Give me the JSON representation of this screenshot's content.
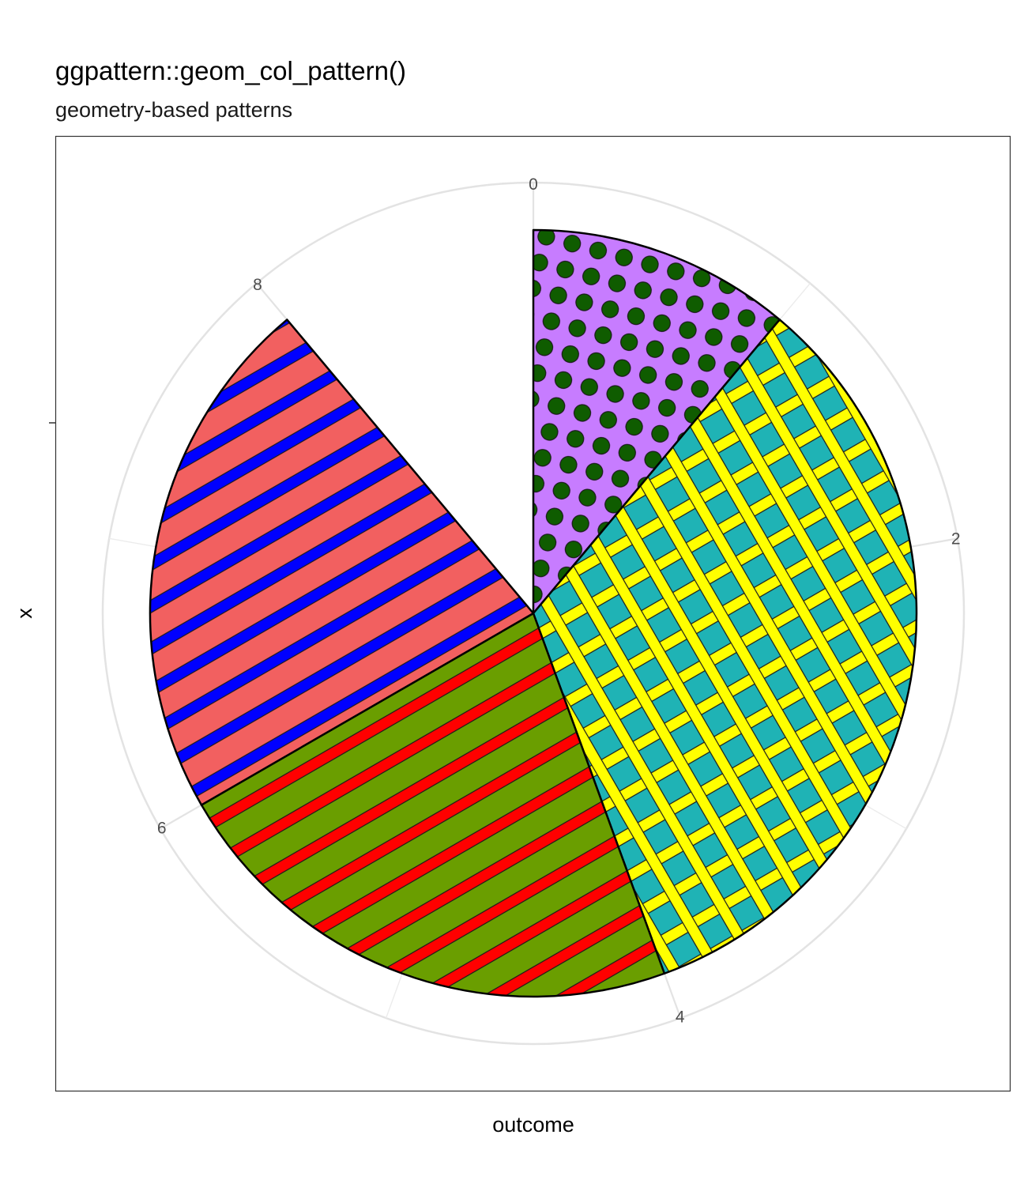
{
  "chart_data": {
    "type": "pie",
    "title": "ggpattern::geom_col_pattern()",
    "subtitle": "geometry-based patterns",
    "xlabel": "outcome",
    "ylabel": "x",
    "theta_ticks": [
      "0",
      "2",
      "4",
      "6",
      "8"
    ],
    "theta_range": [
      0,
      9
    ],
    "grid": true,
    "legend": "none",
    "slices": [
      {
        "value": 1.0,
        "pattern": "circle",
        "fill": "#C77CFF",
        "pattern_fill": "#0F5C00"
      },
      {
        "value": 3.0,
        "pattern": "crosshatch",
        "fill": "#1FB3B5",
        "pattern_fill": "#FFFF00"
      },
      {
        "value": 2.0,
        "pattern": "stripe",
        "fill": "#6A9E00",
        "pattern_fill": "#FF0000"
      },
      {
        "value": 2.0,
        "pattern": "stripe",
        "fill": "#F26060",
        "pattern_fill": "#0000FF"
      }
    ]
  }
}
